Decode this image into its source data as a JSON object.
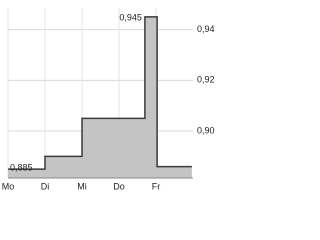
{
  "chart_data": {
    "type": "step-area",
    "x": [
      0,
      1,
      2,
      3.7,
      4.03,
      4.97
    ],
    "values": [
      0.885,
      0.89,
      0.905,
      0.945,
      0.886,
      0.886
    ],
    "fill": "#c4c4c4",
    "color": "#3a3a3a",
    "xlim": [
      0,
      5
    ],
    "xticks": [
      {
        "value": 0,
        "label": "Mo"
      },
      {
        "value": 1,
        "label": "Di"
      },
      {
        "value": 2,
        "label": "Mi"
      },
      {
        "value": 3,
        "label": "Do"
      },
      {
        "value": 4,
        "label": "Fr"
      }
    ],
    "ylim": [
      0.8815,
      0.9485
    ],
    "yticks": [
      {
        "value": 0.9,
        "label": "0,90"
      },
      {
        "value": 0.92,
        "label": "0,92"
      },
      {
        "value": 0.94,
        "label": "0,94"
      }
    ],
    "annotations": [
      "0,945",
      "0,885"
    ],
    "grid": true
  }
}
